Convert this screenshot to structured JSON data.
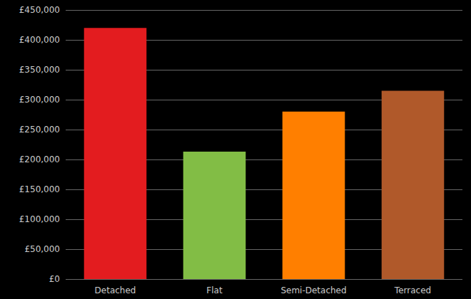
{
  "chart_data": {
    "type": "bar",
    "categories": [
      "Detached",
      "Flat",
      "Semi-Detached",
      "Terraced"
    ],
    "values": [
      420000,
      213000,
      280000,
      315000
    ],
    "colors": [
      "#e31c1f",
      "#82bd45",
      "#ff7f00",
      "#b0592a"
    ],
    "ylim": [
      0,
      450000
    ],
    "yticks": [
      {
        "value": 0,
        "label": "£0"
      },
      {
        "value": 50000,
        "label": "£50,000"
      },
      {
        "value": 100000,
        "label": "£100,000"
      },
      {
        "value": 150000,
        "label": "£150,000"
      },
      {
        "value": 200000,
        "label": "£200,000"
      },
      {
        "value": 250000,
        "label": "£250,000"
      },
      {
        "value": 300000,
        "label": "£300,000"
      },
      {
        "value": 350000,
        "label": "£350,000"
      },
      {
        "value": 400000,
        "label": "£400,000"
      },
      {
        "value": 450000,
        "label": "£450,000"
      }
    ],
    "grid": true
  }
}
